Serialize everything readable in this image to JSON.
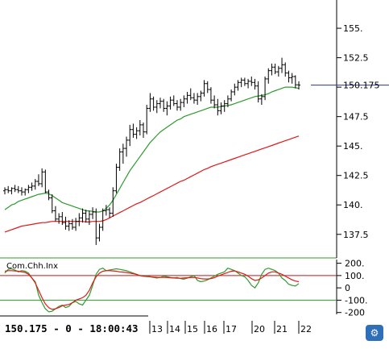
{
  "chart_data": [
    {
      "type": "ohlc",
      "xlim": [
        0,
        92
      ],
      "ylim": [
        135.5,
        157.4
      ],
      "yticks": [
        137.5,
        140,
        142.5,
        145,
        147.5,
        150,
        152.5,
        155
      ],
      "ytick_labels": [
        "137.5",
        "140.",
        "142.5",
        "145.",
        "147.5",
        "",
        "152.5",
        "155."
      ],
      "last_price": 150.175,
      "last_price_label": "150.175",
      "bars": [
        [
          141.2,
          141.5,
          140.9,
          141.3
        ],
        [
          141.3,
          141.6,
          141.0,
          141.2
        ],
        [
          141.2,
          141.5,
          140.9,
          141.4
        ],
        [
          141.4,
          141.7,
          141.1,
          141.3
        ],
        [
          141.3,
          141.6,
          141.0,
          141.2
        ],
        [
          141.2,
          141.5,
          140.8,
          141.1
        ],
        [
          141.1,
          141.4,
          140.8,
          141.3
        ],
        [
          141.3,
          141.7,
          141.0,
          141.5
        ],
        [
          141.5,
          141.9,
          141.2,
          141.6
        ],
        [
          141.6,
          142.2,
          141.3,
          142.0
        ],
        [
          142.0,
          142.6,
          141.6,
          141.8
        ],
        [
          141.8,
          143.1,
          141.5,
          142.8
        ],
        [
          142.8,
          143.0,
          141.0,
          141.1
        ],
        [
          141.1,
          141.3,
          140.4,
          140.6
        ],
        [
          140.6,
          140.9,
          139.3,
          139.5
        ],
        [
          139.5,
          139.9,
          138.6,
          138.8
        ],
        [
          138.8,
          139.3,
          138.4,
          139.0
        ],
        [
          139.0,
          139.4,
          138.3,
          138.5
        ],
        [
          138.5,
          139.0,
          137.9,
          138.2
        ],
        [
          138.2,
          138.7,
          137.8,
          138.4
        ],
        [
          138.4,
          138.8,
          137.9,
          138.1
        ],
        [
          138.1,
          138.9,
          137.8,
          138.6
        ],
        [
          138.6,
          139.3,
          138.2,
          138.9
        ],
        [
          138.9,
          139.7,
          138.5,
          139.3
        ],
        [
          139.3,
          139.6,
          138.5,
          138.8
        ],
        [
          138.8,
          139.5,
          138.3,
          139.2
        ],
        [
          139.2,
          139.8,
          138.8,
          139.4
        ],
        [
          139.4,
          139.7,
          136.6,
          137.2
        ],
        [
          137.2,
          138.4,
          136.9,
          138.1
        ],
        [
          138.1,
          139.7,
          137.8,
          139.5
        ],
        [
          139.5,
          140.0,
          139.1,
          139.6
        ],
        [
          139.6,
          139.8,
          138.9,
          139.3
        ],
        [
          139.3,
          141.5,
          139.0,
          141.2
        ],
        [
          141.2,
          143.5,
          141.0,
          143.2
        ],
        [
          143.2,
          144.8,
          142.9,
          144.5
        ],
        [
          144.5,
          145.2,
          143.5,
          144.8
        ],
        [
          144.8,
          145.8,
          144.1,
          145.5
        ],
        [
          145.5,
          146.8,
          145.0,
          146.4
        ],
        [
          146.4,
          146.9,
          145.7,
          146.0
        ],
        [
          146.0,
          146.6,
          145.6,
          146.3
        ],
        [
          146.3,
          147.2,
          145.9,
          146.8
        ],
        [
          146.8,
          147.0,
          145.7,
          146.2
        ],
        [
          146.2,
          148.5,
          146.0,
          148.2
        ],
        [
          148.2,
          149.5,
          147.9,
          149.0
        ],
        [
          149.0,
          149.2,
          148.0,
          148.3
        ],
        [
          148.3,
          148.9,
          147.8,
          148.6
        ],
        [
          148.6,
          149.1,
          148.2,
          148.8
        ],
        [
          148.8,
          149.0,
          147.9,
          148.2
        ],
        [
          148.2,
          148.8,
          147.6,
          148.4
        ],
        [
          148.4,
          149.2,
          148.1,
          148.9
        ],
        [
          148.9,
          149.3,
          148.4,
          148.6
        ],
        [
          148.6,
          148.9,
          148.0,
          148.3
        ],
        [
          148.3,
          149.0,
          148.0,
          148.7
        ],
        [
          148.7,
          149.3,
          148.3,
          149.0
        ],
        [
          149.0,
          149.6,
          148.6,
          149.3
        ],
        [
          149.3,
          149.9,
          148.9,
          149.1
        ],
        [
          149.1,
          149.5,
          148.6,
          148.9
        ],
        [
          148.9,
          149.5,
          148.5,
          149.2
        ],
        [
          149.2,
          149.7,
          148.8,
          149.5
        ],
        [
          149.5,
          150.6,
          149.2,
          150.3
        ],
        [
          150.3,
          150.5,
          149.5,
          149.8
        ],
        [
          149.8,
          150.0,
          148.6,
          148.9
        ],
        [
          148.9,
          149.3,
          148.2,
          148.5
        ],
        [
          148.5,
          149.0,
          147.6,
          148.0
        ],
        [
          148.0,
          148.7,
          147.7,
          148.4
        ],
        [
          148.4,
          148.9,
          147.9,
          148.6
        ],
        [
          148.6,
          149.3,
          148.3,
          149.0
        ],
        [
          149.0,
          149.8,
          148.8,
          149.6
        ],
        [
          149.6,
          150.3,
          149.3,
          150.0
        ],
        [
          150.0,
          150.6,
          149.7,
          150.4
        ],
        [
          150.4,
          150.8,
          150.0,
          150.6
        ],
        [
          150.6,
          150.8,
          150.1,
          150.3
        ],
        [
          150.3,
          150.7,
          149.9,
          150.5
        ],
        [
          150.5,
          150.9,
          150.1,
          150.4
        ],
        [
          150.4,
          150.7,
          149.8,
          150.1
        ],
        [
          150.1,
          150.5,
          148.7,
          149.0
        ],
        [
          149.0,
          149.4,
          148.5,
          149.2
        ],
        [
          149.2,
          150.9,
          148.9,
          150.7
        ],
        [
          150.7,
          151.6,
          150.3,
          151.4
        ],
        [
          151.4,
          152.0,
          151.0,
          151.7
        ],
        [
          151.7,
          152.0,
          151.1,
          151.3
        ],
        [
          151.3,
          151.8,
          150.9,
          151.6
        ],
        [
          151.6,
          152.5,
          151.2,
          151.9
        ],
        [
          151.9,
          152.1,
          150.9,
          151.2
        ],
        [
          151.2,
          151.4,
          150.4,
          150.8
        ],
        [
          150.8,
          151.2,
          150.3,
          150.9
        ],
        [
          150.9,
          151.0,
          149.9,
          150.2
        ],
        [
          150.2,
          150.5,
          149.8,
          150.175
        ]
      ],
      "series": [
        {
          "color": "#2e9b2e",
          "values": [
            139.6,
            139.8,
            140.0,
            140.1,
            140.3,
            140.4,
            140.5,
            140.6,
            140.7,
            140.8,
            140.9,
            140.95,
            141.0,
            140.95,
            140.8,
            140.6,
            140.4,
            140.2,
            140.1,
            140.0,
            139.9,
            139.8,
            139.7,
            139.6,
            139.5,
            139.5,
            139.45,
            139.4,
            139.4,
            139.5,
            139.7,
            140.0,
            140.4,
            140.9,
            141.4,
            141.9,
            142.4,
            142.9,
            143.3,
            143.7,
            144.1,
            144.5,
            144.9,
            145.3,
            145.6,
            145.9,
            146.2,
            146.4,
            146.6,
            146.8,
            147.0,
            147.2,
            147.3,
            147.5,
            147.6,
            147.7,
            147.8,
            147.9,
            148.0,
            148.1,
            148.2,
            148.3,
            148.3,
            148.3,
            148.35,
            148.4,
            148.45,
            148.5,
            148.6,
            148.7,
            148.8,
            148.9,
            149.0,
            149.1,
            149.2,
            149.25,
            149.3,
            149.35,
            149.45,
            149.6,
            149.7,
            149.8,
            149.9,
            150.0,
            150.0,
            150.0,
            149.95,
            149.9
          ]
        },
        {
          "color": "#e01818",
          "values": [
            137.7,
            137.8,
            137.9,
            138.0,
            138.1,
            138.2,
            138.25,
            138.3,
            138.35,
            138.4,
            138.45,
            138.5,
            138.5,
            138.55,
            138.6,
            138.6,
            138.6,
            138.6,
            138.6,
            138.6,
            138.6,
            138.6,
            138.6,
            138.6,
            138.55,
            138.55,
            138.6,
            138.6,
            138.6,
            138.65,
            138.75,
            138.9,
            139.05,
            139.2,
            139.35,
            139.5,
            139.65,
            139.8,
            139.95,
            140.1,
            140.2,
            140.35,
            140.5,
            140.65,
            140.8,
            140.95,
            141.1,
            141.25,
            141.4,
            141.55,
            141.7,
            141.85,
            142.0,
            142.1,
            142.25,
            142.4,
            142.55,
            142.7,
            142.85,
            143.0,
            143.1,
            143.25,
            143.35,
            143.45,
            143.55,
            143.65,
            143.75,
            143.85,
            143.95,
            144.05,
            144.15,
            144.25,
            144.35,
            144.45,
            144.55,
            144.65,
            144.75,
            144.85,
            144.95,
            145.05,
            145.15,
            145.25,
            145.35,
            145.45,
            145.55,
            145.65,
            145.75,
            145.85
          ]
        }
      ]
    },
    {
      "type": "line",
      "label": "Com.Chh.Inx",
      "xlim": [
        0,
        92
      ],
      "ylim": [
        -215,
        230
      ],
      "yticks": [
        200,
        100,
        0,
        -100,
        -200
      ],
      "ytick_labels": [
        "200.",
        "100.",
        "0",
        "-100.",
        "-200"
      ],
      "hlines": [
        {
          "y": 100,
          "color": "#c01818"
        },
        {
          "y": -100,
          "color": "#2e9b2e"
        }
      ],
      "series": [
        {
          "color": "#2e9b2e",
          "values": [
            120,
            150,
            155,
            145,
            130,
            140,
            135,
            120,
            80,
            50,
            -60,
            -120,
            -170,
            -195,
            -190,
            -170,
            -150,
            -140,
            -160,
            -150,
            -120,
            -110,
            -130,
            -140,
            -100,
            -60,
            20,
            110,
            150,
            160,
            140,
            145,
            150,
            155,
            150,
            145,
            140,
            130,
            120,
            110,
            100,
            95,
            100,
            90,
            85,
            80,
            85,
            95,
            90,
            85,
            80,
            85,
            75,
            70,
            80,
            90,
            100,
            60,
            50,
            55,
            65,
            80,
            95,
            110,
            120,
            130,
            160,
            150,
            140,
            120,
            100,
            90,
            60,
            20,
            0,
            40,
            110,
            150,
            160,
            150,
            140,
            120,
            80,
            60,
            30,
            20,
            15,
            35
          ]
        },
        {
          "color": "#e01818",
          "values": [
            135,
            140,
            140,
            138,
            135,
            130,
            125,
            110,
            80,
            40,
            -20,
            -80,
            -130,
            -160,
            -175,
            -170,
            -160,
            -145,
            -140,
            -135,
            -120,
            -100,
            -90,
            -80,
            -60,
            -20,
            40,
            90,
            120,
            135,
            140,
            140,
            138,
            135,
            130,
            128,
            125,
            120,
            115,
            108,
            100,
            95,
            92,
            90,
            88,
            86,
            85,
            85,
            84,
            82,
            80,
            79,
            78,
            80,
            82,
            84,
            85,
            80,
            75,
            72,
            72,
            75,
            82,
            95,
            105,
            115,
            125,
            135,
            138,
            130,
            120,
            110,
            95,
            75,
            60,
            65,
            80,
            100,
            120,
            130,
            130,
            120,
            110,
            95,
            80,
            65,
            55,
            50
          ]
        }
      ]
    }
  ],
  "readout": {
    "price": "150.175",
    "sep1": " - ",
    "volume": "0",
    "sep2": " - ",
    "time": "18:00:43"
  },
  "x_axis": {
    "labels": [
      "13",
      "14",
      "15",
      "16",
      "17",
      "20",
      "21",
      "22"
    ]
  },
  "colors": {
    "price_bars": "#000000",
    "last_price_line": "#2233aa",
    "frame_green": "#2e9b2e",
    "icon_blue": "#2f6fb8"
  },
  "icons": {
    "corner": "settings-app-icon"
  }
}
